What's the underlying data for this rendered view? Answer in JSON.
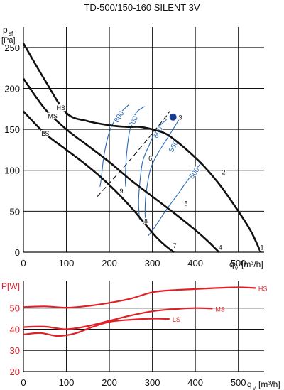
{
  "title": "TD-500/150-160 SILENT 3V",
  "colors": {
    "pressure_curve": "#111111",
    "isoline": "#2a6ab5",
    "system_line": "#111111",
    "power_curve": "#e01f26",
    "point_marker": "#1a3d8f",
    "grid": "#111111"
  },
  "chart_data": [
    {
      "type": "line",
      "x_label": "q",
      "x_label_sub": "v",
      "x_unit": "[m³/h]",
      "y_label": "p",
      "y_label_sub": "sf",
      "y_unit": "[Pa]",
      "xlim": [
        0,
        560
      ],
      "ylim": [
        0,
        275
      ],
      "x_ticks": [
        0,
        100,
        200,
        300,
        400,
        500
      ],
      "y_ticks": [
        0,
        50,
        100,
        150,
        200,
        250
      ],
      "grid": true,
      "series": [
        {
          "name": "HS",
          "x": [
            0,
            50,
            100,
            150,
            200,
            240,
            270,
            300,
            330,
            350,
            380,
            420,
            460,
            500,
            530,
            552
          ],
          "y": [
            255,
            210,
            170,
            160,
            155,
            153,
            153,
            150,
            145,
            138,
            125,
            105,
            80,
            50,
            25,
            0
          ]
        },
        {
          "name": "MS",
          "x": [
            0,
            50,
            100,
            150,
            200,
            250,
            300,
            350,
            400,
            430,
            455
          ],
          "y": [
            212,
            175,
            150,
            130,
            110,
            88,
            68,
            48,
            27,
            13,
            0
          ]
        },
        {
          "name": "LS",
          "x": [
            0,
            50,
            100,
            150,
            200,
            250,
            290,
            310,
            330,
            350
          ],
          "y": [
            172,
            145,
            125,
            105,
            82,
            55,
            30,
            18,
            8,
            0
          ]
        }
      ],
      "point_labels": [
        {
          "label": "1",
          "x": 555,
          "y": 3
        },
        {
          "label": "2",
          "x": 466,
          "y": 95
        },
        {
          "label": "3",
          "x": 365,
          "y": 162
        },
        {
          "label": "4",
          "x": 458,
          "y": 3
        },
        {
          "label": "5",
          "x": 378,
          "y": 57
        },
        {
          "label": "6",
          "x": 295,
          "y": 112
        },
        {
          "label": "7",
          "x": 352,
          "y": 5
        },
        {
          "label": "8",
          "x": 285,
          "y": 35
        },
        {
          "label": "9",
          "x": 228,
          "y": 72
        }
      ],
      "isoline_labels": [
        {
          "label": "800",
          "x": 227,
          "y": 164,
          "angle": -58
        },
        {
          "label": "700",
          "x": 260,
          "y": 158,
          "angle": -62
        },
        {
          "label": "600",
          "x": 318,
          "y": 145,
          "angle": -62
        },
        {
          "label": "550",
          "x": 354,
          "y": 128,
          "angle": -62
        },
        {
          "label": "500",
          "x": 402,
          "y": 95,
          "angle": -55
        }
      ],
      "isolines": [
        {
          "value": "800",
          "x": [
            245,
            222,
            202,
            188,
            181,
            178
          ],
          "y": [
            180,
            168,
            150,
            120,
            90,
            80
          ]
        },
        {
          "value": "700",
          "x": [
            282,
            262,
            248,
            240,
            237,
            238
          ],
          "y": [
            178,
            170,
            150,
            120,
            90,
            80
          ]
        },
        {
          "value": "600",
          "x": [
            333,
            310,
            292,
            277,
            270,
            268,
            270
          ],
          "y": [
            162,
            150,
            130,
            110,
            80,
            60,
            40
          ]
        },
        {
          "value": "550",
          "x": [
            362,
            336,
            312,
            295,
            285,
            283,
            284
          ],
          "y": [
            162,
            140,
            120,
            100,
            70,
            50,
            40
          ]
        },
        {
          "value": "500",
          "x": [
            415,
            385,
            358,
            330,
            305,
            290
          ],
          "y": [
            110,
            90,
            70,
            50,
            30,
            20
          ]
        }
      ],
      "system_line": {
        "x": [
          172,
          252,
          326,
          340
        ],
        "y": [
          68,
          115,
          162,
          172
        ]
      },
      "operating_point": {
        "label": "3",
        "x": 348,
        "y": 165
      }
    },
    {
      "type": "line",
      "y_label": "P",
      "y_unit": "[W]",
      "x_label": "q",
      "x_label_sub": "v",
      "x_unit": "[m³/h]",
      "xlim": [
        0,
        560
      ],
      "ylim": [
        20,
        63
      ],
      "x_ticks": [
        0,
        100,
        200,
        300,
        400,
        500
      ],
      "y_ticks": [
        20,
        30,
        40,
        50
      ],
      "grid": true,
      "series": [
        {
          "name": "HS",
          "x": [
            0,
            50,
            100,
            150,
            200,
            250,
            300,
            350,
            400,
            450,
            500,
            540
          ],
          "y": [
            50.5,
            50.8,
            50.2,
            51.0,
            52.5,
            54.5,
            57.5,
            58.5,
            59.0,
            59.5,
            59.8,
            59.5
          ]
        },
        {
          "name": "MS",
          "x": [
            0,
            50,
            100,
            150,
            200,
            250,
            300,
            350,
            400,
            440
          ],
          "y": [
            41,
            41.2,
            40.0,
            41.5,
            44.0,
            46.5,
            48.5,
            49.5,
            50.0,
            49.8
          ]
        },
        {
          "name": "LS",
          "x": [
            0,
            40,
            80,
            120,
            160,
            200,
            250,
            300,
            340
          ],
          "y": [
            37.5,
            38.2,
            36.8,
            38.0,
            41.0,
            43.5,
            44.5,
            45.0,
            44.8
          ]
        }
      ]
    }
  ]
}
